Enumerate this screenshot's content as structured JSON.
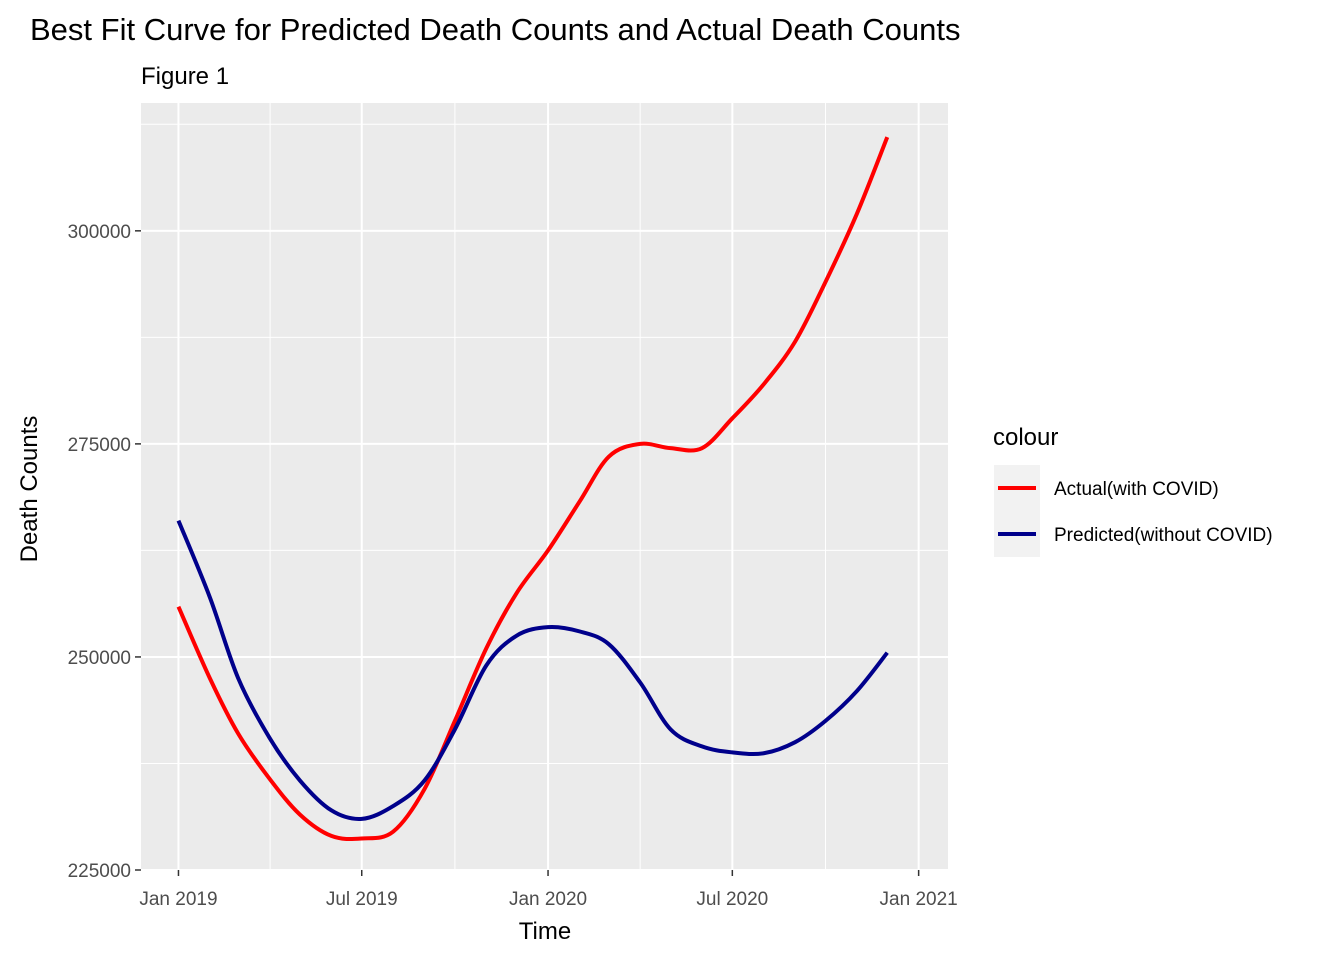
{
  "chart_data": {
    "type": "line",
    "title": "Best Fit Curve for Predicted Death Counts and Actual Death Counts",
    "subtitle": "Figure 1",
    "xlabel": "Time",
    "ylabel": "Death Counts",
    "x_ticks": [
      "2019-01-01",
      "2019-07-01",
      "2020-01-01",
      "2020-07-01",
      "2021-01-01"
    ],
    "x_tick_labels": [
      "Jan 2019",
      "Jul 2019",
      "Jan 2020",
      "Jul 2020",
      "Jan 2021"
    ],
    "y_ticks": [
      225000,
      250000,
      275000,
      300000
    ],
    "y_tick_labels": [
      "225000",
      "250000",
      "275000",
      "300000"
    ],
    "xlim": [
      "2018-11-25",
      "2021-01-30"
    ],
    "ylim": [
      225000,
      315000
    ],
    "grid": true,
    "background": "#ebebeb",
    "legend": {
      "title": "colour",
      "placement": "right"
    },
    "x": [
      "2019-01-01",
      "2019-02-01",
      "2019-03-01",
      "2019-04-01",
      "2019-05-01",
      "2019-06-01",
      "2019-07-01",
      "2019-08-01",
      "2019-09-01",
      "2019-10-01",
      "2019-11-01",
      "2019-12-01",
      "2020-01-01",
      "2020-02-01",
      "2020-03-01",
      "2020-04-01",
      "2020-05-01",
      "2020-06-01",
      "2020-07-01",
      "2020-08-01",
      "2020-09-01",
      "2020-10-01",
      "2020-11-01",
      "2020-12-01"
    ],
    "series": [
      {
        "name": "Actual(with COVID)",
        "color": "#ff0000",
        "values": [
          255900,
          247500,
          241000,
          235700,
          231500,
          229000,
          228700,
          229500,
          234500,
          242500,
          251000,
          257500,
          262500,
          268200,
          273500,
          275000,
          274500,
          274500,
          278000,
          282000,
          287000,
          294000,
          302000,
          311000
        ]
      },
      {
        "name": "Predicted(without COVID)",
        "color": "#00008b",
        "values": [
          266000,
          257000,
          247500,
          240500,
          235500,
          232000,
          231000,
          232500,
          235500,
          241500,
          249000,
          252500,
          253500,
          253000,
          251500,
          247000,
          241500,
          239500,
          238800,
          238700,
          240000,
          242500,
          246000,
          250500
        ]
      }
    ]
  }
}
